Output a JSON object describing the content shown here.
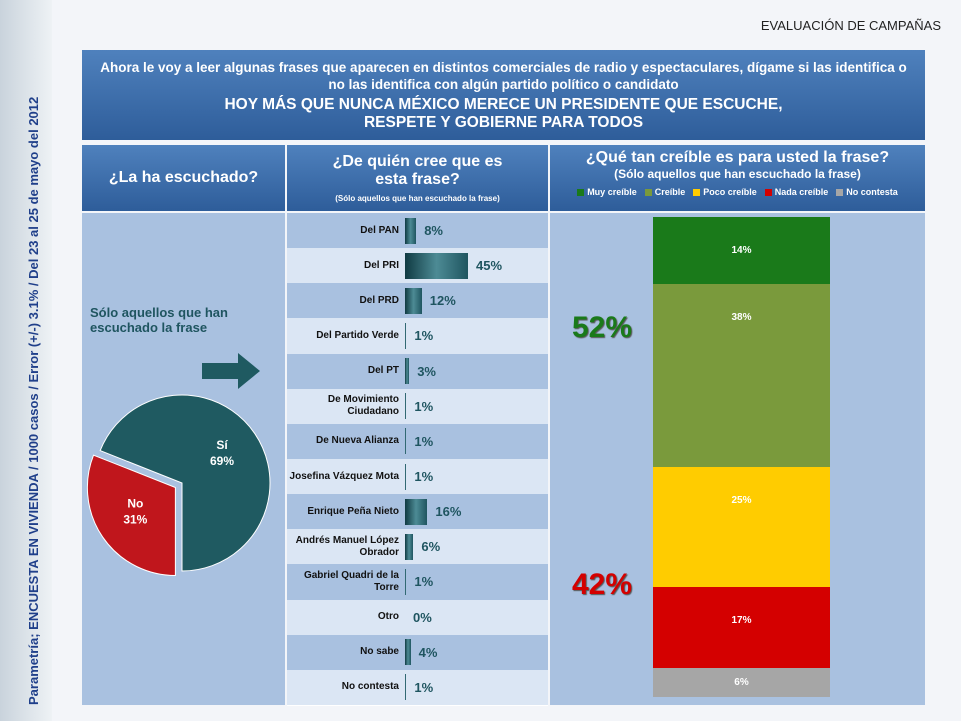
{
  "header": "EVALUACIÓN DE CAMPAÑAS",
  "side_note": "Parametría; ENCUESTA EN VIVIENDA / 1000 casos / Error (+/-) 3.1% / Del 23 al 25 de mayo del 2012",
  "question": "Ahora le voy a leer algunas frases que aparecen en distintos comerciales de radio y espectaculares, dígame si las identifica o no las identifica con algún partido político o candidato",
  "phrase_line1": "HOY MÁS QUE NUNCA MÉXICO MERECE UN PRESIDENTE QUE ESCUCHE,",
  "phrase_line2": "RESPETE Y GOBIERNE PARA TODOS",
  "chart_data": [
    {
      "type": "pie",
      "title": "¿La ha escuchado?",
      "subtitle": "Sólo aquellos que han escuchado la frase",
      "categories": [
        "Sí",
        "No"
      ],
      "values": [
        69,
        31
      ],
      "value_labels": [
        "69%",
        "31%"
      ],
      "colors": [
        "#1f5a61",
        "#c0161c"
      ]
    },
    {
      "type": "bar",
      "title": "¿De quién cree que es esta frase?",
      "subtitle": "(Sólo aquellos que han escuchado la frase)",
      "categories": [
        "Del PAN",
        "Del PRI",
        "Del PRD",
        "Del Partido Verde",
        "Del PT",
        "De Movimiento Ciudadano",
        "De Nueva Alianza",
        "Josefina Vázquez Mota",
        "Enrique Peña Nieto",
        "Andrés Manuel López Obrador",
        "Gabriel Quadri de la Torre",
        "Otro",
        "No sabe",
        "No contesta"
      ],
      "values": [
        8,
        45,
        12,
        1,
        3,
        1,
        1,
        1,
        16,
        6,
        1,
        0,
        4,
        1
      ],
      "value_labels": [
        "8%",
        "45%",
        "12%",
        "1%",
        "3%",
        "1%",
        "1%",
        "1%",
        "16%",
        "6%",
        "1%",
        "0%",
        "4%",
        "1%"
      ],
      "color": "#1f5560"
    },
    {
      "type": "stacked_bar",
      "title": "¿Qué tan creíble es para usted la frase?",
      "subtitle": "(Sólo aquellos que han escuchado la frase)",
      "series": [
        {
          "name": "Muy creíble",
          "color": "#1a7a1a",
          "values": [
            14
          ],
          "value_labels": [
            "14%"
          ]
        },
        {
          "name": "Creíble",
          "color": "#7a9a3c",
          "values": [
            38
          ],
          "value_labels": [
            "38%"
          ]
        },
        {
          "name": "Poco creíble",
          "color": "#ffcc00",
          "values": [
            25
          ],
          "value_labels": [
            "25%"
          ]
        },
        {
          "name": "Nada creíble",
          "color": "#d40000",
          "values": [
            17
          ],
          "value_labels": [
            "17%"
          ]
        },
        {
          "name": "No contesta",
          "color": "#a6a6a6",
          "values": [
            6
          ],
          "value_labels": [
            "6%"
          ]
        }
      ],
      "annotations": [
        "52%",
        "42%"
      ]
    }
  ]
}
